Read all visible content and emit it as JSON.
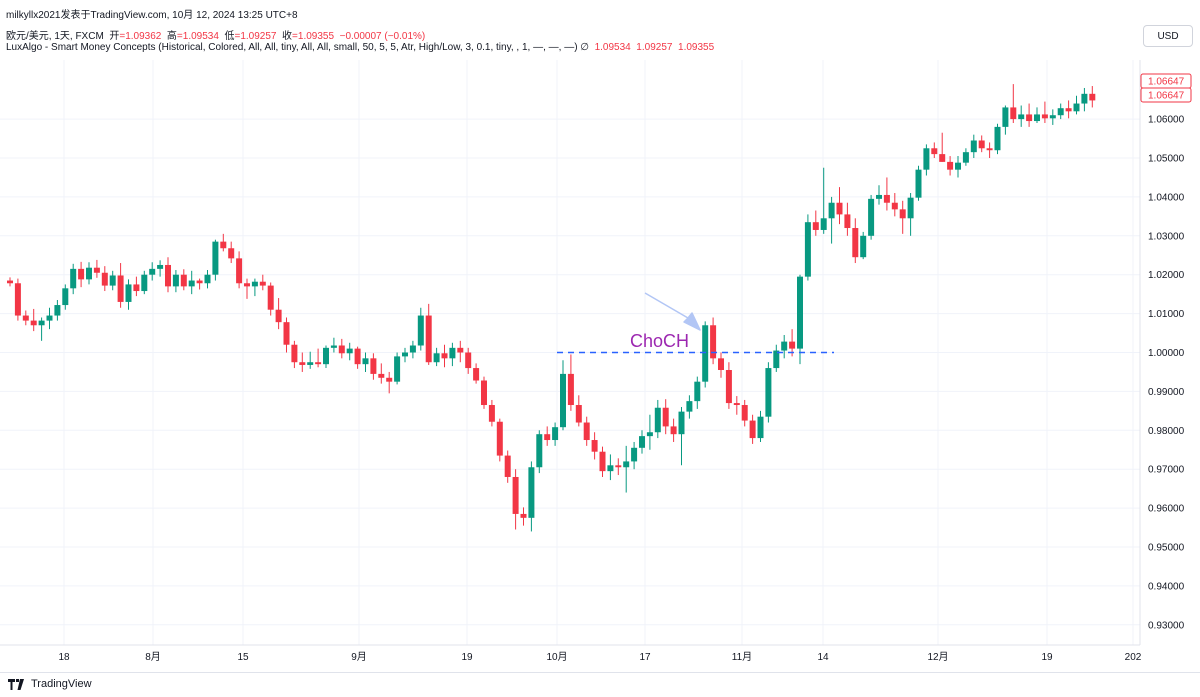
{
  "header": {
    "top_line": "milkyllx2021发表于TradingView.com,  10月 12, 2024 13:25 UTC+8",
    "symbol": "欧元/美元, 1天, FXCM",
    "ohlc": {
      "open_label": "开",
      "open": "=1.09362",
      "high_label": "高",
      "high": "=1.09534",
      "low_label": "低",
      "low": "=1.09257",
      "close_label": "收",
      "close": "=1.09355",
      "change": "−0.00007 (−0.01%)"
    },
    "indicator": "LuxAlgo - Smart Money Concepts (Historical, Colored, All, All, tiny, All, All, small, 50, 5, 5, Atr, High/Low, 3, 0.1, tiny, , 1, —, —, —)  ∅",
    "indicator_values": [
      "1.09534",
      "1.09257",
      "1.09355"
    ]
  },
  "currency_button": "USD",
  "footer": {
    "brand": "TradingView"
  },
  "colors": {
    "up": "#089981",
    "down": "#f23645",
    "grid": "#f0f3fa",
    "choch": "#9c27b0",
    "level_line": "#2962ff",
    "arrow": "#b2c6f5"
  },
  "annotation": {
    "label": "ChoCH",
    "level": 1.0
  },
  "price_labels": [
    "1.06647",
    "1.06647"
  ],
  "chart_data": {
    "type": "candlestick",
    "y_axis": {
      "ticks": [
        0.93,
        0.94,
        0.95,
        0.96,
        0.97,
        0.98,
        0.99,
        1.0,
        1.01,
        1.02,
        1.03,
        1.04,
        1.05,
        1.06
      ],
      "tick_labels": [
        "0.93000",
        "0.94000",
        "0.95000",
        "0.96000",
        "0.97000",
        "0.98000",
        "0.99000",
        "1.00000",
        "1.01000",
        "1.02000",
        "1.03000",
        "1.04000",
        "1.05000",
        "1.06000"
      ]
    },
    "x_axis": {
      "labels": [
        "18",
        "8月",
        "15",
        "9月",
        "19",
        "10月",
        "17",
        "11月",
        "14",
        "12月",
        "19",
        "202"
      ]
    },
    "candles": [
      [
        1.0185,
        1.0193,
        1.017,
        1.0178
      ],
      [
        1.0178,
        1.019,
        1.0082,
        1.0095
      ],
      [
        1.0095,
        1.0108,
        1.007,
        1.0082
      ],
      [
        1.0082,
        1.0112,
        1.0055,
        1.007
      ],
      [
        1.007,
        1.009,
        1.003,
        1.0082
      ],
      [
        1.0082,
        1.0115,
        1.006,
        1.0095
      ],
      [
        1.0095,
        1.0135,
        1.0082,
        1.0122
      ],
      [
        1.0122,
        1.0175,
        1.011,
        1.0165
      ],
      [
        1.0165,
        1.0228,
        1.015,
        1.0215
      ],
      [
        1.0215,
        1.0233,
        1.0168,
        1.0188
      ],
      [
        1.0188,
        1.0232,
        1.0175,
        1.0218
      ],
      [
        1.0218,
        1.0238,
        1.0192,
        1.0205
      ],
      [
        1.0205,
        1.0222,
        1.0158,
        1.0172
      ],
      [
        1.0172,
        1.021,
        1.016,
        1.0198
      ],
      [
        1.0198,
        1.023,
        1.0115,
        1.013
      ],
      [
        1.013,
        1.0188,
        1.011,
        1.0175
      ],
      [
        1.0175,
        1.0195,
        1.0145,
        1.0158
      ],
      [
        1.0158,
        1.021,
        1.015,
        1.02
      ],
      [
        1.02,
        1.0232,
        1.0185,
        1.0215
      ],
      [
        1.0215,
        1.0237,
        1.0195,
        1.0225
      ],
      [
        1.0225,
        1.0245,
        1.0155,
        1.017
      ],
      [
        1.017,
        1.0212,
        1.0155,
        1.02
      ],
      [
        1.02,
        1.0214,
        1.016,
        1.017
      ],
      [
        1.017,
        1.021,
        1.015,
        1.0185
      ],
      [
        1.0185,
        1.019,
        1.0162,
        1.0178
      ],
      [
        1.0178,
        1.0212,
        1.0165,
        1.02
      ],
      [
        1.02,
        1.029,
        1.0185,
        1.0285
      ],
      [
        1.0285,
        1.0305,
        1.026,
        1.0268
      ],
      [
        1.0268,
        1.0285,
        1.023,
        1.0242
      ],
      [
        1.0242,
        1.026,
        1.0165,
        1.0178
      ],
      [
        1.0178,
        1.019,
        1.0138,
        1.017
      ],
      [
        1.017,
        1.019,
        1.0145,
        1.0182
      ],
      [
        1.0182,
        1.02,
        1.016,
        1.0172
      ],
      [
        1.0172,
        1.018,
        1.0095,
        1.011
      ],
      [
        1.011,
        1.014,
        1.006,
        1.0078
      ],
      [
        1.0078,
        1.009,
        1.0,
        1.002
      ],
      [
        1.002,
        1.003,
        0.996,
        0.9975
      ],
      [
        0.9975,
        1.0,
        0.995,
        0.9968
      ],
      [
        0.9968,
        1.0002,
        0.9958,
        0.9975
      ],
      [
        0.9975,
        1.001,
        0.9962,
        0.997
      ],
      [
        0.997,
        1.0018,
        0.996,
        1.0012
      ],
      [
        1.0012,
        1.0038,
        1.0,
        1.0018
      ],
      [
        1.0018,
        1.0035,
        0.9985,
        0.9998
      ],
      [
        0.9998,
        1.0025,
        0.998,
        1.001
      ],
      [
        1.001,
        1.0015,
        0.9958,
        0.997
      ],
      [
        0.997,
        1.0,
        0.995,
        0.9985
      ],
      [
        0.9985,
        0.9998,
        0.993,
        0.9945
      ],
      [
        0.9945,
        0.9972,
        0.992,
        0.9935
      ],
      [
        0.9935,
        0.995,
        0.9895,
        0.9925
      ],
      [
        0.9925,
        1.0,
        0.9918,
        0.999
      ],
      [
        0.999,
        1.0012,
        0.9975,
        1.0
      ],
      [
        1.0,
        1.003,
        0.9985,
        1.0018
      ],
      [
        1.0018,
        1.0115,
        1.0005,
        1.0095
      ],
      [
        1.0095,
        1.0125,
        0.9968,
        0.9975
      ],
      [
        0.9975,
        1.0012,
        0.9965,
        0.9998
      ],
      [
        0.9998,
        1.002,
        0.9962,
        0.9985
      ],
      [
        0.9985,
        1.0025,
        0.9965,
        1.0012
      ],
      [
        1.0012,
        1.003,
        0.9975,
        1.0
      ],
      [
        1.0,
        1.0012,
        0.9945,
        0.996
      ],
      [
        0.996,
        0.9972,
        0.992,
        0.9928
      ],
      [
        0.9928,
        0.9938,
        0.9855,
        0.9865
      ],
      [
        0.9865,
        0.9878,
        0.981,
        0.9822
      ],
      [
        0.9822,
        0.983,
        0.972,
        0.9735
      ],
      [
        0.9735,
        0.9748,
        0.9665,
        0.968
      ],
      [
        0.968,
        0.97,
        0.9545,
        0.9585
      ],
      [
        0.9585,
        0.9602,
        0.9555,
        0.9575
      ],
      [
        0.9575,
        0.972,
        0.954,
        0.9705
      ],
      [
        0.9705,
        0.98,
        0.969,
        0.979
      ],
      [
        0.979,
        0.981,
        0.976,
        0.9775
      ],
      [
        0.9775,
        0.982,
        0.976,
        0.9808
      ],
      [
        0.9808,
        0.998,
        0.98,
        0.9945
      ],
      [
        0.9945,
        0.9995,
        0.985,
        0.9865
      ],
      [
        0.9865,
        0.989,
        0.981,
        0.982
      ],
      [
        0.982,
        0.9835,
        0.976,
        0.9775
      ],
      [
        0.9775,
        0.9795,
        0.9725,
        0.9745
      ],
      [
        0.9745,
        0.9758,
        0.968,
        0.9695
      ],
      [
        0.9695,
        0.9738,
        0.9672,
        0.971
      ],
      [
        0.971,
        0.9728,
        0.9685,
        0.9705
      ],
      [
        0.9705,
        0.976,
        0.964,
        0.972
      ],
      [
        0.972,
        0.977,
        0.97,
        0.9755
      ],
      [
        0.9755,
        0.98,
        0.974,
        0.9785
      ],
      [
        0.9785,
        0.984,
        0.975,
        0.9795
      ],
      [
        0.9795,
        0.9878,
        0.978,
        0.9858
      ],
      [
        0.9858,
        0.988,
        0.979,
        0.981
      ],
      [
        0.981,
        0.983,
        0.977,
        0.979
      ],
      [
        0.979,
        0.986,
        0.971,
        0.9848
      ],
      [
        0.9848,
        0.989,
        0.983,
        0.9875
      ],
      [
        0.9875,
        0.9938,
        0.9855,
        0.9925
      ],
      [
        0.9925,
        1.008,
        0.991,
        1.007
      ],
      [
        1.007,
        1.009,
        0.997,
        0.9985
      ],
      [
        0.9985,
        1.0,
        0.9935,
        0.9955
      ],
      [
        0.9955,
        0.9975,
        0.9855,
        0.987
      ],
      [
        0.987,
        0.9888,
        0.984,
        0.9865
      ],
      [
        0.9865,
        0.9878,
        0.981,
        0.9825
      ],
      [
        0.9825,
        0.984,
        0.9765,
        0.978
      ],
      [
        0.978,
        0.985,
        0.977,
        0.9835
      ],
      [
        0.9835,
        0.9975,
        0.982,
        0.996
      ],
      [
        0.996,
        1.002,
        0.995,
        1.0005
      ],
      [
        1.0005,
        1.0045,
        0.9985,
        1.0028
      ],
      [
        1.0028,
        1.006,
        0.999,
        1.001
      ],
      [
        1.001,
        1.02,
        0.997,
        1.0195
      ],
      [
        1.0195,
        1.0355,
        1.0185,
        1.0335
      ],
      [
        1.0335,
        1.0365,
        1.03,
        1.0315
      ],
      [
        1.0315,
        1.0475,
        1.0305,
        1.0345
      ],
      [
        1.0345,
        1.04,
        1.028,
        1.0385
      ],
      [
        1.0385,
        1.0425,
        1.033,
        1.0355
      ],
      [
        1.0355,
        1.0385,
        1.03,
        1.032
      ],
      [
        1.032,
        1.0345,
        1.023,
        1.0245
      ],
      [
        1.0245,
        1.031,
        1.024,
        1.03
      ],
      [
        1.03,
        1.0405,
        1.029,
        1.0395
      ],
      [
        1.0395,
        1.043,
        1.038,
        1.0405
      ],
      [
        1.0405,
        1.045,
        1.0365,
        1.0385
      ],
      [
        1.0385,
        1.041,
        1.035,
        1.0368
      ],
      [
        1.0368,
        1.039,
        1.0305,
        1.0345
      ],
      [
        1.0345,
        1.041,
        1.03,
        1.0398
      ],
      [
        1.0398,
        1.048,
        1.039,
        1.047
      ],
      [
        1.047,
        1.0535,
        1.0455,
        1.0525
      ],
      [
        1.0525,
        1.054,
        1.05,
        1.051
      ],
      [
        1.051,
        1.0565,
        1.049,
        1.049
      ],
      [
        1.049,
        1.0505,
        1.0455,
        1.047
      ],
      [
        1.047,
        1.0505,
        1.045,
        1.0488
      ],
      [
        1.0488,
        1.0525,
        1.048,
        1.0515
      ],
      [
        1.0515,
        1.056,
        1.05,
        1.0545
      ],
      [
        1.0545,
        1.0558,
        1.0515,
        1.0525
      ],
      [
        1.0525,
        1.054,
        1.05,
        1.052
      ],
      [
        1.052,
        1.0588,
        1.051,
        1.058
      ],
      [
        1.058,
        1.0635,
        1.056,
        1.063
      ],
      [
        1.063,
        1.069,
        1.059,
        1.06
      ],
      [
        1.06,
        1.0635,
        1.058,
        1.0612
      ],
      [
        1.0612,
        1.064,
        1.058,
        1.0595
      ],
      [
        1.0595,
        1.063,
        1.059,
        1.0612
      ],
      [
        1.0612,
        1.0645,
        1.059,
        1.0602
      ],
      [
        1.0602,
        1.0625,
        1.0585,
        1.061
      ],
      [
        1.061,
        1.064,
        1.06,
        1.0628
      ],
      [
        1.0628,
        1.0648,
        1.0602,
        1.062
      ],
      [
        1.062,
        1.066,
        1.0612,
        1.064
      ],
      [
        1.064,
        1.068,
        1.062,
        1.0665
      ],
      [
        1.0665,
        1.0685,
        1.063,
        1.0648
      ]
    ]
  }
}
